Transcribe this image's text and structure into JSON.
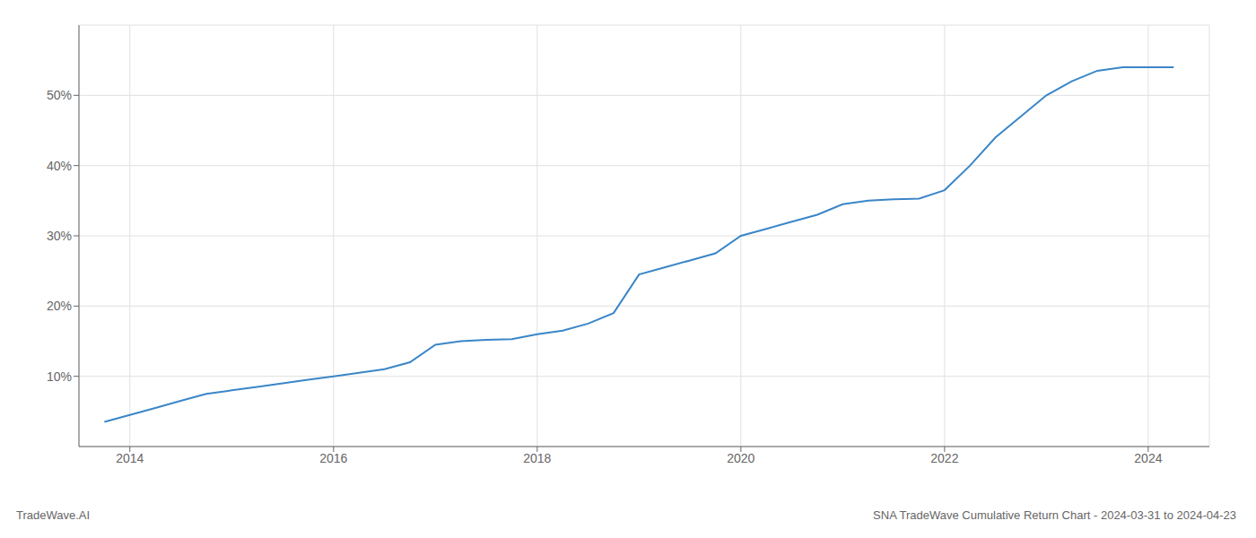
{
  "chart_data": {
    "type": "line",
    "title": "SNA TradeWave Cumulative Return Chart - 2024-03-31 to 2024-04-23",
    "annotations": [
      "TradeWave.AI"
    ],
    "color": "#3a86c8",
    "grid": true,
    "x": [
      2013.75,
      2014.0,
      2014.25,
      2014.5,
      2014.75,
      2015.0,
      2015.25,
      2015.5,
      2015.75,
      2016.0,
      2016.25,
      2016.5,
      2016.75,
      2017.0,
      2017.25,
      2017.5,
      2017.75,
      2018.0,
      2018.25,
      2018.5,
      2018.75,
      2019.0,
      2019.25,
      2019.5,
      2019.75,
      2020.0,
      2020.25,
      2020.5,
      2020.75,
      2021.0,
      2021.25,
      2021.5,
      2021.75,
      2022.0,
      2022.25,
      2022.5,
      2022.75,
      2023.0,
      2023.25,
      2023.5,
      2023.75,
      2024.0,
      2024.25
    ],
    "values": [
      3.5,
      4.5,
      5.5,
      6.5,
      7.5,
      8.0,
      8.5,
      9.0,
      9.5,
      10.0,
      10.5,
      11.0,
      12.0,
      14.5,
      15.0,
      15.2,
      15.3,
      16.0,
      16.5,
      17.5,
      19.0,
      24.5,
      25.5,
      26.5,
      27.5,
      30.0,
      31.0,
      32.0,
      33.0,
      34.5,
      35.0,
      35.2,
      35.3,
      36.5,
      40.0,
      44.0,
      47.0,
      50.0,
      52.0,
      53.5,
      54.0,
      54.0,
      54.0
    ],
    "xlim": [
      2013.5,
      2024.6
    ],
    "ylim": [
      0,
      60
    ],
    "xticks": [
      2014,
      2016,
      2018,
      2020,
      2022,
      2024
    ],
    "yticks": [
      {
        "value": 10,
        "label": "10%"
      },
      {
        "value": 20,
        "label": "20%"
      },
      {
        "value": 30,
        "label": "30%"
      },
      {
        "value": 40,
        "label": "40%"
      },
      {
        "value": 50,
        "label": "50%"
      }
    ]
  }
}
